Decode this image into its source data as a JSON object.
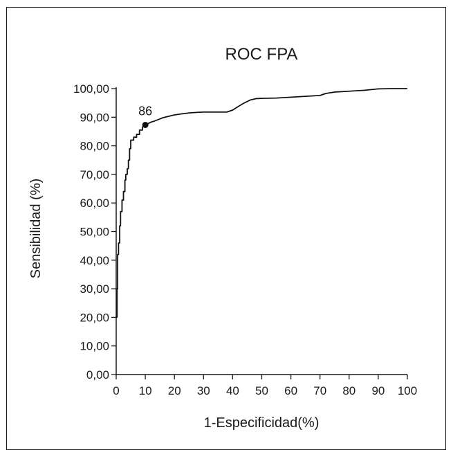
{
  "chart_data": {
    "type": "line",
    "title": "ROC FPA",
    "xlabel": "1-Especificidad(%)",
    "ylabel": "Sensibilidad (%)",
    "xlim": [
      0,
      100
    ],
    "ylim": [
      0,
      100
    ],
    "x_ticks": [
      "0",
      "10",
      "20",
      "30",
      "40",
      "50",
      "60",
      "70",
      "80",
      "90",
      "100"
    ],
    "y_ticks": [
      "0,00",
      "10,00",
      "20,00",
      "30,00",
      "40,00",
      "50,00",
      "60,00",
      "70,00",
      "80,00",
      "90,00",
      "100,00"
    ],
    "grid": false,
    "series": [
      {
        "points": [
          [
            0,
            20
          ],
          [
            0.3,
            20
          ],
          [
            0.3,
            30
          ],
          [
            0.5,
            30
          ],
          [
            0.5,
            42
          ],
          [
            0.8,
            42
          ],
          [
            0.8,
            46
          ],
          [
            1.2,
            46
          ],
          [
            1.2,
            52
          ],
          [
            1.5,
            52
          ],
          [
            1.5,
            57
          ],
          [
            2.0,
            57
          ],
          [
            2.0,
            61
          ],
          [
            2.5,
            61
          ],
          [
            2.5,
            64
          ],
          [
            3.0,
            64
          ],
          [
            3.0,
            68
          ],
          [
            3.3,
            68
          ],
          [
            3.3,
            70
          ],
          [
            3.8,
            70
          ],
          [
            3.8,
            72
          ],
          [
            4.2,
            72
          ],
          [
            4.2,
            75
          ],
          [
            4.6,
            75
          ],
          [
            4.6,
            79
          ],
          [
            5.0,
            79
          ],
          [
            5.0,
            82
          ],
          [
            6.0,
            82
          ],
          [
            6.0,
            83
          ],
          [
            7.0,
            83
          ],
          [
            7.0,
            84
          ],
          [
            8.0,
            84
          ],
          [
            8.0,
            85.5
          ],
          [
            9.0,
            85.5
          ],
          [
            9.0,
            86.5
          ],
          [
            10.0,
            87.3
          ],
          [
            11,
            87.8
          ],
          [
            12,
            88.3
          ],
          [
            13,
            88.6
          ],
          [
            14,
            89
          ],
          [
            15,
            89.4
          ],
          [
            16,
            89.8
          ],
          [
            18,
            90.3
          ],
          [
            20,
            90.8
          ],
          [
            22,
            91.1
          ],
          [
            25,
            91.5
          ],
          [
            28,
            91.7
          ],
          [
            30,
            91.8
          ],
          [
            35,
            91.8
          ],
          [
            38,
            91.8
          ],
          [
            40,
            92.5
          ],
          [
            42,
            93.8
          ],
          [
            44,
            95
          ],
          [
            46,
            96
          ],
          [
            48,
            96.5
          ],
          [
            50,
            96.6
          ],
          [
            55,
            96.7
          ],
          [
            60,
            97
          ],
          [
            65,
            97.3
          ],
          [
            70,
            97.6
          ],
          [
            72,
            98.3
          ],
          [
            75,
            98.8
          ],
          [
            80,
            99.1
          ],
          [
            85,
            99.4
          ],
          [
            88,
            99.7
          ],
          [
            90,
            99.9
          ],
          [
            95,
            100
          ],
          [
            100,
            100
          ]
        ]
      }
    ],
    "highlight_point": {
      "x": 10,
      "y": 87.3,
      "label": "86"
    }
  }
}
